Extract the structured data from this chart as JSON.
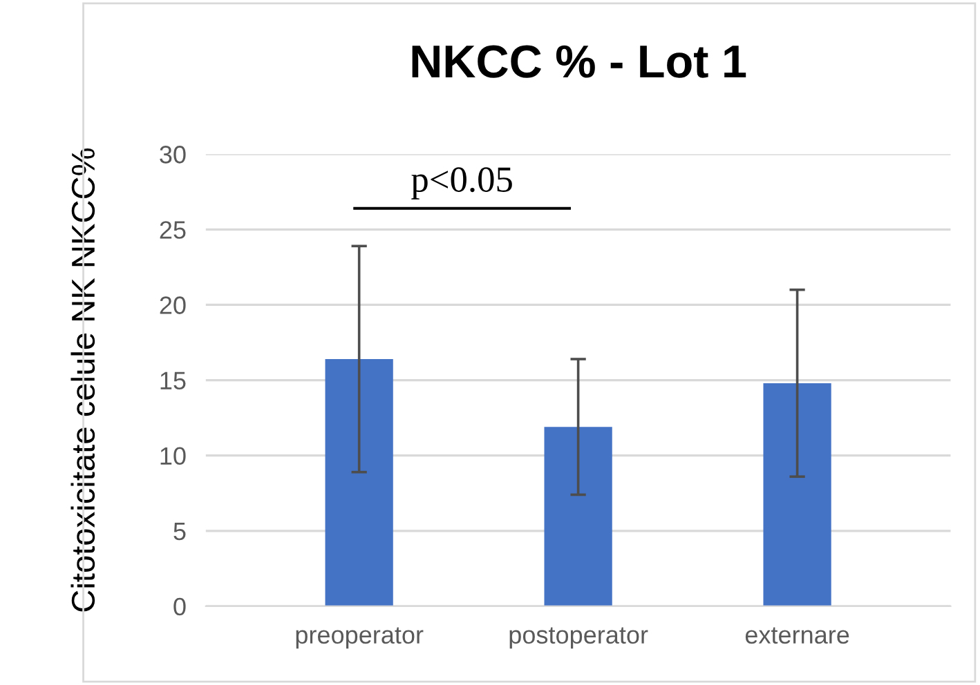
{
  "chart_data": {
    "type": "bar",
    "title": "NKCC % - Lot 1",
    "ylabel": "Citotoxicitate celule NK NKCC%",
    "categories": [
      "preoperator",
      "postoperator",
      "externare"
    ],
    "values": [
      16.4,
      11.9,
      14.8
    ],
    "errors": [
      [
        8.9,
        23.9
      ],
      [
        7.4,
        16.4
      ],
      [
        8.6,
        21.0
      ]
    ],
    "color": "#4472c4",
    "ylim": [
      0,
      30
    ],
    "yticks": [
      0,
      5,
      10,
      15,
      20,
      25,
      30
    ],
    "grid": "y",
    "annotations": [
      "p<0.05"
    ]
  }
}
